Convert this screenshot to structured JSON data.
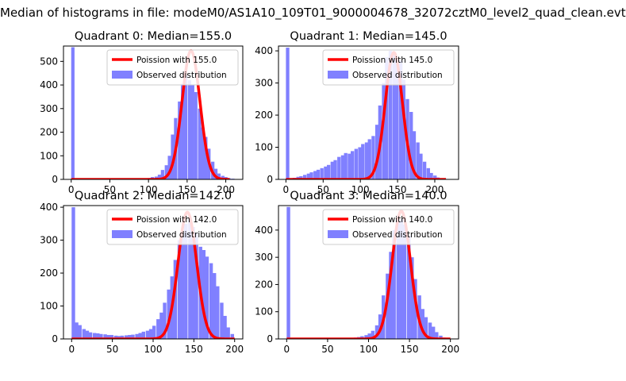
{
  "figure": {
    "suptitle": "Median of histograms in file: modeM0/AS1A10_109T01_9000004678_32072cztM0_level2_quad_clean.evt",
    "colors": {
      "hist": "#8080ff",
      "fit": "#ff0000"
    }
  },
  "chart_data": [
    {
      "type": "bar",
      "title": "Quadrant 0: Median=155.0",
      "xlim": [
        -10,
        222
      ],
      "ylim": [
        0,
        565
      ],
      "xticks": [
        0,
        50,
        100,
        150,
        200
      ],
      "yticks": [
        0,
        100,
        200,
        300,
        400,
        500
      ],
      "legend": {
        "fit_label": "Poission with 155.0",
        "hist_label": "Observed distribution",
        "position": "top-right"
      },
      "bin_width": 4.3,
      "hist_x": [
        0,
        86,
        90,
        95,
        99,
        103,
        108,
        112,
        116,
        121,
        125,
        129,
        133,
        138,
        142,
        146,
        151,
        155,
        159,
        164,
        168,
        172,
        176,
        181,
        185,
        189,
        194,
        198,
        202,
        207
      ],
      "hist_y": [
        560,
        3,
        3,
        5,
        6,
        10,
        12,
        20,
        40,
        60,
        100,
        190,
        260,
        330,
        405,
        440,
        420,
        400,
        370,
        300,
        220,
        180,
        130,
        75,
        45,
        25,
        15,
        10,
        5,
        3
      ],
      "fit": {
        "mean": 155.0,
        "peak": 545,
        "sigma": 11.6,
        "x_range": [
          0,
          205
        ]
      }
    },
    {
      "type": "bar",
      "title": "Quadrant 1: Median=145.0",
      "xlim": [
        -10,
        232
      ],
      "ylim": [
        0,
        415
      ],
      "xticks": [
        0,
        50,
        100,
        150,
        200
      ],
      "yticks": [
        0,
        100,
        200,
        300,
        400
      ],
      "legend": {
        "fit_label": "Poission with 145.0",
        "hist_label": "Observed distribution",
        "position": "top-right"
      },
      "bin_width": 4.6,
      "hist_x": [
        0,
        5,
        9,
        14,
        18,
        23,
        28,
        32,
        37,
        41,
        46,
        51,
        55,
        60,
        64,
        69,
        74,
        78,
        83,
        87,
        92,
        97,
        101,
        106,
        110,
        115,
        120,
        124,
        129,
        133,
        138,
        143,
        147,
        152,
        156,
        161,
        166,
        170,
        175,
        179,
        184,
        189,
        193,
        198,
        202,
        207
      ],
      "hist_y": [
        410,
        3,
        5,
        8,
        10,
        14,
        18,
        22,
        26,
        30,
        35,
        40,
        45,
        55,
        60,
        70,
        75,
        82,
        80,
        88,
        95,
        100,
        110,
        115,
        125,
        135,
        170,
        230,
        300,
        380,
        400,
        390,
        360,
        370,
        310,
        250,
        210,
        150,
        115,
        80,
        55,
        35,
        20,
        12,
        6,
        3
      ],
      "fit": {
        "mean": 145.0,
        "peak": 395,
        "sigma": 11.5,
        "x_range": [
          0,
          215
        ]
      }
    },
    {
      "type": "bar",
      "title": "Quadrant 2: Median=142.0",
      "xlim": [
        -10,
        210
      ],
      "ylim": [
        0,
        405
      ],
      "xticks": [
        0,
        50,
        100,
        150,
        200
      ],
      "yticks": [
        0,
        100,
        200,
        300,
        400
      ],
      "legend": {
        "fit_label": "Poission with 142.0",
        "hist_label": "Observed distribution",
        "position": "top-right"
      },
      "bin_width": 4.3,
      "hist_x": [
        0,
        4,
        8,
        13,
        17,
        21,
        26,
        30,
        34,
        39,
        43,
        47,
        52,
        56,
        60,
        65,
        69,
        73,
        78,
        82,
        86,
        91,
        95,
        99,
        104,
        108,
        112,
        117,
        121,
        125,
        130,
        134,
        138,
        143,
        147,
        151,
        156,
        160,
        164,
        169,
        173,
        177,
        182,
        186,
        190,
        195
      ],
      "hist_y": [
        400,
        50,
        42,
        30,
        25,
        20,
        18,
        17,
        15,
        14,
        12,
        12,
        10,
        9,
        10,
        11,
        12,
        13,
        15,
        18,
        22,
        25,
        30,
        40,
        60,
        80,
        110,
        150,
        190,
        240,
        300,
        320,
        350,
        370,
        340,
        320,
        280,
        270,
        250,
        230,
        200,
        160,
        110,
        70,
        35,
        15
      ],
      "fit": {
        "mean": 142.0,
        "peak": 385,
        "sigma": 11.4,
        "x_range": [
          0,
          200
        ]
      }
    },
    {
      "type": "bar",
      "title": "Quadrant 3: Median=140.0",
      "xlim": [
        -10,
        210
      ],
      "ylim": [
        0,
        490
      ],
      "xticks": [
        0,
        50,
        100,
        150,
        200
      ],
      "yticks": [
        0,
        100,
        200,
        300,
        400
      ],
      "legend": {
        "fit_label": "Poission with 140.0",
        "hist_label": "Observed distribution",
        "position": "top-right"
      },
      "bin_width": 4.3,
      "hist_x": [
        0,
        73,
        77,
        82,
        86,
        90,
        95,
        99,
        103,
        108,
        112,
        116,
        121,
        125,
        129,
        134,
        138,
        142,
        147,
        151,
        155,
        160,
        164,
        168,
        173,
        177,
        181,
        186,
        190
      ],
      "hist_y": [
        485,
        3,
        3,
        5,
        7,
        10,
        14,
        20,
        30,
        50,
        90,
        160,
        240,
        320,
        400,
        430,
        440,
        420,
        380,
        300,
        220,
        160,
        110,
        80,
        60,
        45,
        25,
        12,
        5
      ],
      "fit": {
        "mean": 140.0,
        "peak": 470,
        "sigma": 11.2,
        "x_range": [
          0,
          200
        ]
      }
    }
  ]
}
